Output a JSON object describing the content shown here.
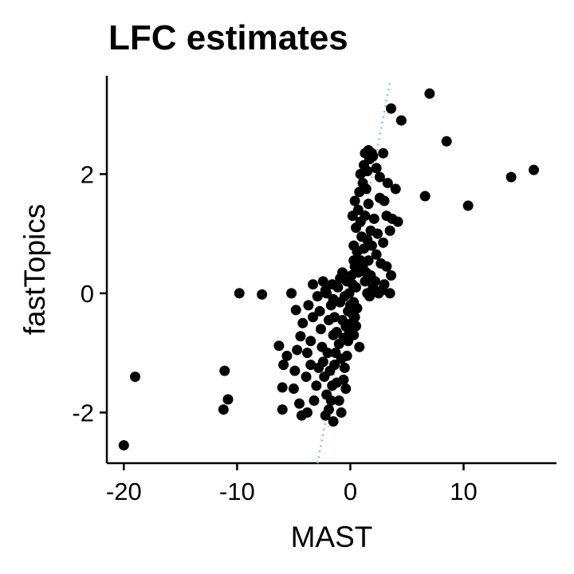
{
  "chart_data": {
    "type": "scatter",
    "title": "LFC estimates",
    "xlabel": "MAST",
    "ylabel": "fastTopics",
    "xlim": [
      -21.5,
      18.2
    ],
    "ylim": [
      -2.85,
      3.65
    ],
    "xticks": [
      -20,
      -10,
      0,
      10
    ],
    "xtick_labels": [
      "-20",
      "-10",
      "0",
      "10"
    ],
    "yticks": [
      -2,
      0,
      2
    ],
    "ytick_labels": [
      "-2",
      "0",
      "2"
    ],
    "grid": false,
    "legend": "none",
    "point_color": "#000000",
    "reference_line": {
      "style": "dotted",
      "color": "#7EC8E3",
      "x": [
        -2.9,
        3.5
      ],
      "y": [
        -2.85,
        3.55
      ]
    },
    "points": [
      [
        -20.0,
        -2.55
      ],
      [
        -19.0,
        -1.4
      ],
      [
        -11.2,
        -1.95
      ],
      [
        -11.1,
        -1.3
      ],
      [
        -10.8,
        -1.78
      ],
      [
        -9.8,
        0.0
      ],
      [
        -7.8,
        -0.02
      ],
      [
        -6.0,
        -1.95
      ],
      [
        -6.0,
        -1.58
      ],
      [
        -6.3,
        -0.88
      ],
      [
        -5.9,
        -1.2
      ],
      [
        -5.6,
        -1.05
      ],
      [
        -5.0,
        -1.6
      ],
      [
        -4.9,
        -1.3
      ],
      [
        -4.5,
        -1.85
      ],
      [
        -4.3,
        -2.05
      ],
      [
        -4.7,
        -0.95
      ],
      [
        -4.4,
        -0.72
      ],
      [
        -5.2,
        0.0
      ],
      [
        -4.8,
        -0.28
      ],
      [
        -4.2,
        -0.5
      ],
      [
        -3.8,
        -1.0
      ],
      [
        -3.9,
        -1.4
      ],
      [
        -3.5,
        -1.2
      ],
      [
        -3.7,
        -0.2
      ],
      [
        -3.3,
        -0.4
      ],
      [
        -3.8,
        -2.0
      ],
      [
        -3.2,
        -1.8
      ],
      [
        -3.0,
        -1.55
      ],
      [
        -2.8,
        -1.25
      ],
      [
        -3.5,
        -0.8
      ],
      [
        -3.3,
        0.15
      ],
      [
        -2.9,
        -0.05
      ],
      [
        -2.7,
        -0.3
      ],
      [
        -2.6,
        -0.6
      ],
      [
        -2.5,
        -0.9
      ],
      [
        -2.4,
        -1.15
      ],
      [
        -2.3,
        -1.4
      ],
      [
        -2.1,
        -1.7
      ],
      [
        -2.2,
        -2.05
      ],
      [
        -1.9,
        -1.95
      ],
      [
        -1.7,
        -1.8
      ],
      [
        -1.5,
        -2.15
      ],
      [
        -2.0,
        -1.0
      ],
      [
        -1.8,
        -1.3
      ],
      [
        -1.6,
        -1.55
      ],
      [
        -1.4,
        -1.2
      ],
      [
        -1.3,
        -1.0
      ],
      [
        -1.5,
        -0.7
      ],
      [
        -1.9,
        -0.45
      ],
      [
        -2.1,
        0.0
      ],
      [
        -2.4,
        0.2
      ],
      [
        -2.2,
        0.05
      ],
      [
        -1.7,
        -0.2
      ],
      [
        -1.4,
        -0.4
      ],
      [
        -1.2,
        -0.65
      ],
      [
        -1.0,
        -0.85
      ],
      [
        -1.2,
        -1.5
      ],
      [
        -1.0,
        -1.8
      ],
      [
        -0.8,
        -2.0
      ],
      [
        -1.5,
        -0.1
      ],
      [
        -1.1,
        0.1
      ],
      [
        -0.9,
        -0.15
      ],
      [
        -0.7,
        -0.45
      ],
      [
        -0.6,
        -0.75
      ],
      [
        -0.8,
        -1.1
      ],
      [
        -0.5,
        -1.25
      ],
      [
        -0.4,
        -1.6
      ],
      [
        -0.6,
        -1.45
      ],
      [
        -0.3,
        -1.05
      ],
      [
        -0.2,
        -0.8
      ],
      [
        -0.4,
        -0.55
      ],
      [
        -0.2,
        -0.3
      ],
      [
        -0.5,
        -0.05
      ],
      [
        -0.1,
        0.0
      ],
      [
        0.0,
        -0.2
      ],
      [
        0.1,
        -0.5
      ],
      [
        -0.1,
        -0.65
      ],
      [
        0.2,
        -0.35
      ],
      [
        0.3,
        -0.7
      ],
      [
        0.4,
        -0.4
      ],
      [
        0.5,
        -0.55
      ],
      [
        0.3,
        -0.15
      ],
      [
        0.2,
        0.15
      ],
      [
        0.5,
        0.1
      ],
      [
        0.6,
        -0.25
      ],
      [
        0.8,
        -0.9
      ],
      [
        0.7,
        0.35
      ],
      [
        0.4,
        0.45
      ],
      [
        0.1,
        0.3
      ],
      [
        -0.3,
        0.2
      ],
      [
        -0.7,
        0.35
      ],
      [
        0.9,
        0.55
      ],
      [
        0.6,
        0.7
      ],
      [
        0.3,
        0.8
      ],
      [
        0.5,
        1.1
      ],
      [
        0.2,
        1.3
      ],
      [
        0.4,
        1.55
      ],
      [
        0.7,
        1.4
      ],
      [
        0.9,
        1.2
      ],
      [
        1.0,
        0.95
      ],
      [
        1.2,
        0.75
      ],
      [
        1.1,
        0.45
      ],
      [
        1.3,
        0.2
      ],
      [
        1.5,
        0.0
      ],
      [
        1.7,
        -0.05
      ],
      [
        1.4,
        0.35
      ],
      [
        1.6,
        0.55
      ],
      [
        1.8,
        0.3
      ],
      [
        2.0,
        0.1
      ],
      [
        2.2,
        0.2
      ],
      [
        2.5,
        0.0
      ],
      [
        2.8,
        0.05
      ],
      [
        3.0,
        0.15
      ],
      [
        3.5,
        0.0
      ],
      [
        2.7,
        0.5
      ],
      [
        2.3,
        0.65
      ],
      [
        3.2,
        0.45
      ],
      [
        3.6,
        0.3
      ],
      [
        1.9,
        0.8
      ],
      [
        1.5,
        0.9
      ],
      [
        1.8,
        1.05
      ],
      [
        2.4,
        1.0
      ],
      [
        2.9,
        0.85
      ],
      [
        1.3,
        1.3
      ],
      [
        1.6,
        1.5
      ],
      [
        2.1,
        1.25
      ],
      [
        0.8,
        1.7
      ],
      [
        1.1,
        1.85
      ],
      [
        1.4,
        1.75
      ],
      [
        0.9,
        2.0
      ],
      [
        1.2,
        2.15
      ],
      [
        1.5,
        2.05
      ],
      [
        1.7,
        2.25
      ],
      [
        1.3,
        2.35
      ],
      [
        1.6,
        2.4
      ],
      [
        2.0,
        2.3
      ],
      [
        2.3,
        2.1
      ],
      [
        2.6,
        1.95
      ],
      [
        3.3,
        1.85
      ],
      [
        3.0,
        1.55
      ],
      [
        3.2,
        1.3
      ],
      [
        3.7,
        1.25
      ],
      [
        4.0,
        1.75
      ],
      [
        4.2,
        1.2
      ],
      [
        3.5,
        1.05
      ],
      [
        2.6,
        1.6
      ],
      [
        0.3,
        0.55
      ],
      [
        -0.9,
        0.25
      ],
      [
        -1.6,
        0.15
      ],
      [
        1.9,
        2.35
      ],
      [
        2.9,
        2.35
      ],
      [
        3.6,
        3.1
      ],
      [
        4.5,
        2.9
      ],
      [
        7.0,
        3.35
      ],
      [
        8.5,
        2.55
      ],
      [
        6.6,
        1.63
      ],
      [
        10.4,
        1.47
      ],
      [
        14.2,
        1.95
      ],
      [
        16.2,
        2.07
      ]
    ]
  }
}
